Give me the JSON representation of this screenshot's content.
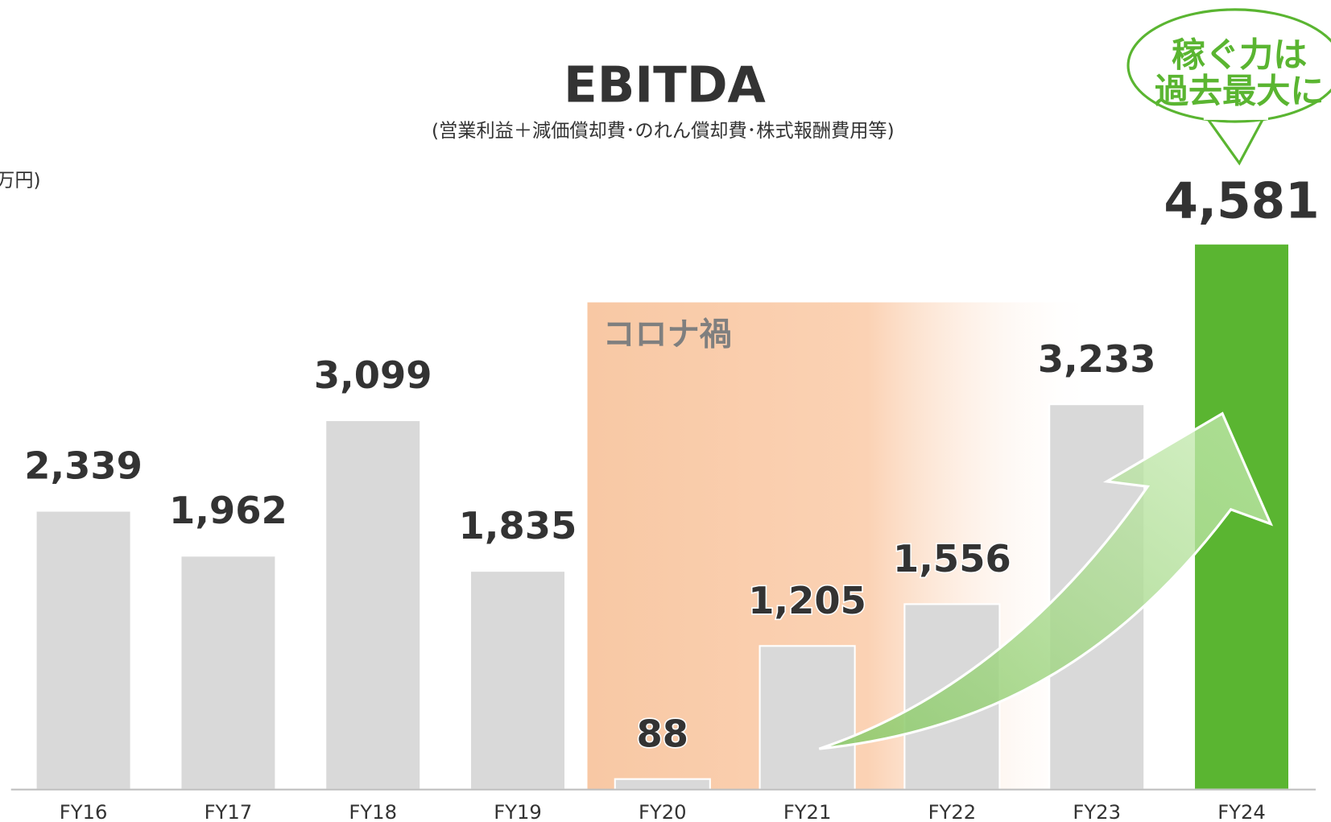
{
  "chart_data": {
    "type": "bar",
    "title": "EBITDA",
    "subtitle": "(営業利益＋減価償却費･のれん償却費･株式報酬費用等)",
    "unit_label": "(百万円)",
    "period_label": "コロナ禍",
    "callout": [
      "稼ぐ力は",
      "過去最大に"
    ],
    "categories": [
      "FY16",
      "FY17",
      "FY18",
      "FY19",
      "FY20",
      "FY21",
      "FY22",
      "FY23",
      "FY24"
    ],
    "values": [
      2339,
      1962,
      3099,
      1835,
      88,
      1205,
      1556,
      3233,
      4581
    ],
    "value_labels": [
      "2,339",
      "1,962",
      "3,099",
      "1,835",
      "88",
      "1,205",
      "1,556",
      "3,233",
      "4,581"
    ],
    "colors": [
      "#d9d9d9",
      "#d9d9d9",
      "#d9d9d9",
      "#d9d9d9",
      "#d9d9d9",
      "#d9d9d9",
      "#d9d9d9",
      "#d9d9d9",
      "#5ab531"
    ],
    "ylim": [
      0,
      5000
    ],
    "grid": false
  }
}
